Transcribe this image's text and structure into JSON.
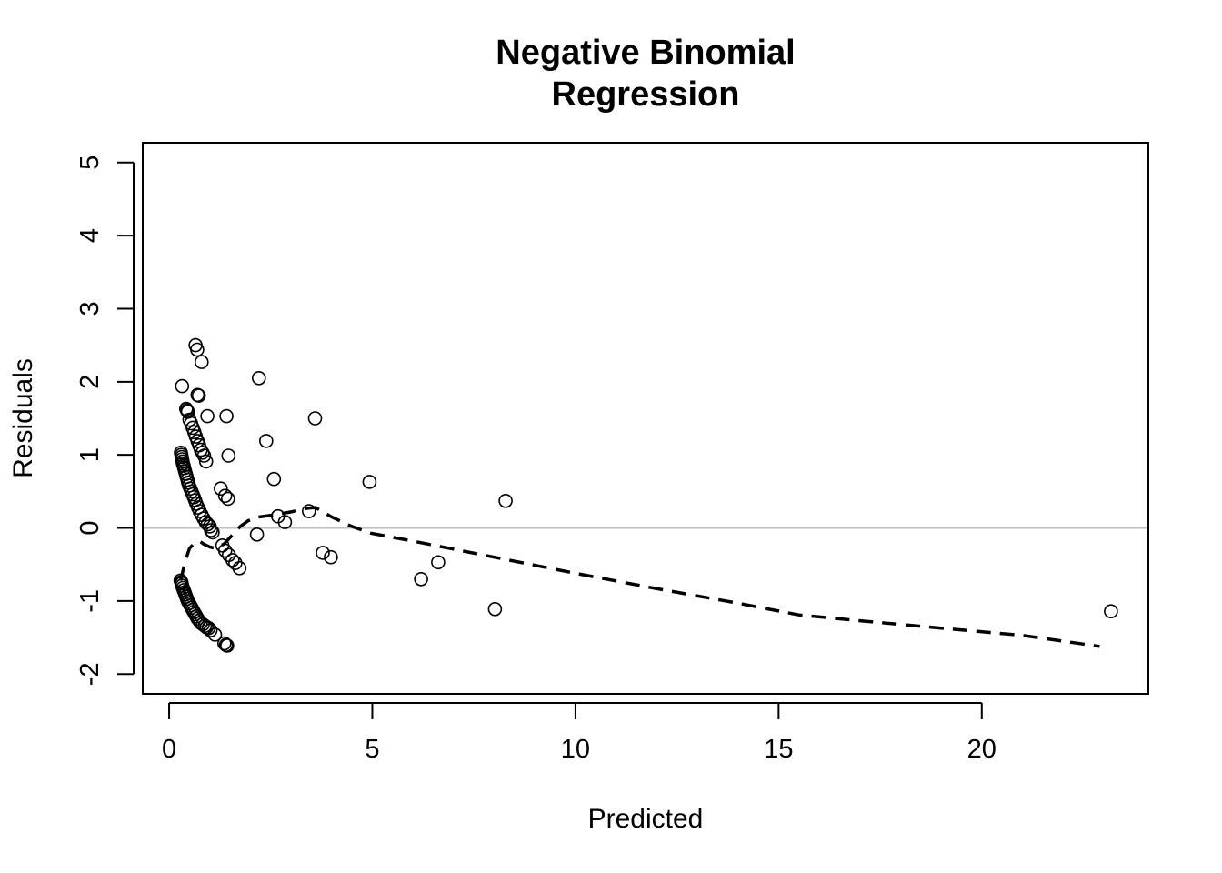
{
  "chart_data": {
    "type": "scatter",
    "title_lines": [
      "Negative Binomial",
      "Regression"
    ],
    "xlabel": "Predicted",
    "ylabel": "Residuals",
    "xlim": [
      -0.65,
      24.1
    ],
    "ylim": [
      -2.27,
      5.27
    ],
    "x_ticks": [
      0,
      5,
      10,
      15,
      20
    ],
    "x_tick_labels": [
      "0",
      "5",
      "10",
      "15",
      "20"
    ],
    "y_ticks": [
      -2,
      -1,
      0,
      1,
      2,
      3,
      4,
      5
    ],
    "y_tick_labels": [
      "-2",
      "-1",
      "0",
      "1",
      "2",
      "3",
      "4",
      "5"
    ],
    "reference_line_y": 0,
    "grid": false,
    "legend": "none",
    "marker": "open-circle",
    "colors": {
      "points": "#000000",
      "smooth": "#000000",
      "reference": "#bebebe"
    },
    "points": [
      [
        0.28,
        -0.72
      ],
      [
        0.3,
        -0.74
      ],
      [
        0.31,
        -0.76
      ],
      [
        0.32,
        -0.79
      ],
      [
        0.34,
        -0.82
      ],
      [
        0.36,
        -0.85
      ],
      [
        0.38,
        -0.88
      ],
      [
        0.4,
        -0.91
      ],
      [
        0.42,
        -0.94
      ],
      [
        0.44,
        -0.97
      ],
      [
        0.46,
        -1.0
      ],
      [
        0.49,
        -1.03
      ],
      [
        0.52,
        -1.06
      ],
      [
        0.55,
        -1.09
      ],
      [
        0.58,
        -1.12
      ],
      [
        0.61,
        -1.15
      ],
      [
        0.64,
        -1.18
      ],
      [
        0.67,
        -1.21
      ],
      [
        0.7,
        -1.24
      ],
      [
        0.74,
        -1.27
      ],
      [
        0.78,
        -1.3
      ],
      [
        0.83,
        -1.32
      ],
      [
        0.88,
        -1.34
      ],
      [
        0.92,
        -1.36
      ],
      [
        0.97,
        -1.37
      ],
      [
        1.02,
        -1.4
      ],
      [
        1.13,
        -1.46
      ],
      [
        1.36,
        -1.58
      ],
      [
        1.4,
        -1.6
      ],
      [
        1.43,
        -1.61
      ],
      [
        0.29,
        1.03
      ],
      [
        0.3,
        1.0
      ],
      [
        0.31,
        0.97
      ],
      [
        0.32,
        0.94
      ],
      [
        0.33,
        0.91
      ],
      [
        0.34,
        0.88
      ],
      [
        0.36,
        0.85
      ],
      [
        0.37,
        0.82
      ],
      [
        0.39,
        0.78
      ],
      [
        0.41,
        0.74
      ],
      [
        0.43,
        0.7
      ],
      [
        0.45,
        0.66
      ],
      [
        0.47,
        0.62
      ],
      [
        0.49,
        0.58
      ],
      [
        0.52,
        0.54
      ],
      [
        0.55,
        0.5
      ],
      [
        0.58,
        0.46
      ],
      [
        0.61,
        0.42
      ],
      [
        0.64,
        0.38
      ],
      [
        0.67,
        0.33
      ],
      [
        0.71,
        0.28
      ],
      [
        0.75,
        0.23
      ],
      [
        0.8,
        0.18
      ],
      [
        0.85,
        0.13
      ],
      [
        0.9,
        0.08
      ],
      [
        0.95,
        0.05
      ],
      [
        1.0,
        0.02
      ],
      [
        1.03,
        -0.03
      ],
      [
        1.07,
        -0.06
      ],
      [
        0.42,
        1.63
      ],
      [
        0.44,
        1.61
      ],
      [
        0.46,
        1.59
      ],
      [
        0.5,
        1.48
      ],
      [
        0.54,
        1.43
      ],
      [
        0.58,
        1.37
      ],
      [
        0.62,
        1.31
      ],
      [
        0.66,
        1.25
      ],
      [
        0.7,
        1.19
      ],
      [
        0.74,
        1.13
      ],
      [
        0.78,
        1.07
      ],
      [
        0.82,
        1.03
      ],
      [
        0.86,
        0.99
      ],
      [
        0.91,
        0.91
      ],
      [
        0.32,
        1.94
      ],
      [
        0.65,
        2.5
      ],
      [
        0.69,
        2.44
      ],
      [
        0.8,
        2.27
      ],
      [
        0.7,
        1.82
      ],
      [
        0.73,
        1.81
      ],
      [
        0.94,
        1.53
      ],
      [
        1.41,
        1.53
      ],
      [
        1.46,
        0.99
      ],
      [
        1.27,
        0.54
      ],
      [
        1.38,
        0.44
      ],
      [
        1.45,
        0.4
      ],
      [
        1.31,
        -0.24
      ],
      [
        1.38,
        -0.31
      ],
      [
        1.47,
        -0.37
      ],
      [
        1.56,
        -0.44
      ],
      [
        1.63,
        -0.48
      ],
      [
        1.73,
        -0.55
      ],
      [
        2.16,
        -0.09
      ],
      [
        2.21,
        2.05
      ],
      [
        2.39,
        1.19
      ],
      [
        2.58,
        0.67
      ],
      [
        2.68,
        0.16
      ],
      [
        2.85,
        0.08
      ],
      [
        3.44,
        0.23
      ],
      [
        3.59,
        1.5
      ],
      [
        3.78,
        -0.34
      ],
      [
        3.98,
        -0.4
      ],
      [
        4.93,
        0.63
      ],
      [
        6.2,
        -0.7
      ],
      [
        6.62,
        -0.47
      ],
      [
        8.02,
        -1.11
      ],
      [
        8.28,
        0.37
      ],
      [
        23.18,
        -1.14
      ]
    ],
    "smooth_line": [
      [
        0.28,
        -0.72
      ],
      [
        0.4,
        -0.45
      ],
      [
        0.5,
        -0.28
      ],
      [
        0.6,
        -0.22
      ],
      [
        0.75,
        -0.18
      ],
      [
        0.85,
        -0.22
      ],
      [
        1.0,
        -0.26
      ],
      [
        1.15,
        -0.28
      ],
      [
        1.35,
        -0.22
      ],
      [
        1.55,
        -0.1
      ],
      [
        1.75,
        0.02
      ],
      [
        1.95,
        0.1
      ],
      [
        2.2,
        0.15
      ],
      [
        2.6,
        0.18
      ],
      [
        3.0,
        0.22
      ],
      [
        3.4,
        0.27
      ],
      [
        3.6,
        0.28
      ],
      [
        4.0,
        0.15
      ],
      [
        4.5,
        0.02
      ],
      [
        4.95,
        -0.07
      ],
      [
        6.0,
        -0.18
      ],
      [
        8.0,
        -0.4
      ],
      [
        10.0,
        -0.62
      ],
      [
        12.0,
        -0.83
      ],
      [
        14.0,
        -1.03
      ],
      [
        15.5,
        -1.19
      ],
      [
        17.0,
        -1.27
      ],
      [
        19.0,
        -1.37
      ],
      [
        21.0,
        -1.47
      ],
      [
        22.9,
        -1.62
      ]
    ]
  }
}
